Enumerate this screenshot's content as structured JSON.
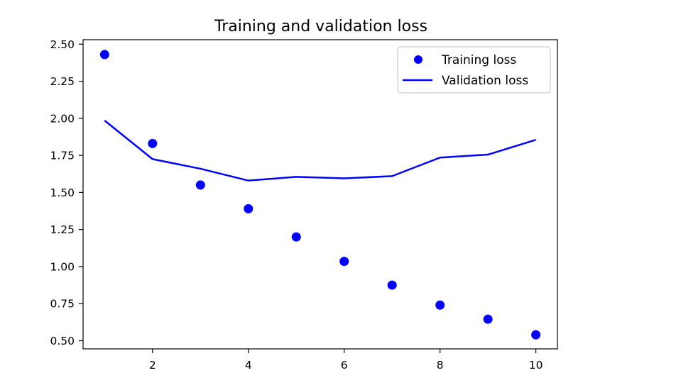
{
  "chart_data": {
    "type": "line",
    "title": "Training and validation loss",
    "xlabel": "",
    "ylabel": "",
    "x": [
      1,
      2,
      3,
      4,
      5,
      6,
      7,
      8,
      9,
      10
    ],
    "xlim": [
      0.55,
      10.45
    ],
    "ylim": [
      0.445,
      2.53
    ],
    "xticks": [
      2,
      4,
      6,
      8,
      10
    ],
    "xtick_labels": [
      "2",
      "4",
      "6",
      "8",
      "10"
    ],
    "yticks": [
      0.5,
      0.75,
      1.0,
      1.25,
      1.5,
      1.75,
      2.0,
      2.25,
      2.5
    ],
    "ytick_labels": [
      "0.50",
      "0.75",
      "1.00",
      "1.25",
      "1.50",
      "1.75",
      "2.00",
      "2.25",
      "2.50"
    ],
    "grid": false,
    "legend_position": "top-right",
    "series": [
      {
        "name": "Training loss",
        "style": "markers",
        "color": "#0000ff",
        "values": [
          2.43,
          1.83,
          1.55,
          1.39,
          1.2,
          1.035,
          0.875,
          0.74,
          0.645,
          0.54
        ]
      },
      {
        "name": "Validation loss",
        "style": "line",
        "color": "#0000ff",
        "values": [
          1.985,
          1.725,
          1.66,
          1.58,
          1.605,
          1.595,
          1.61,
          1.735,
          1.755,
          1.855
        ]
      }
    ]
  }
}
